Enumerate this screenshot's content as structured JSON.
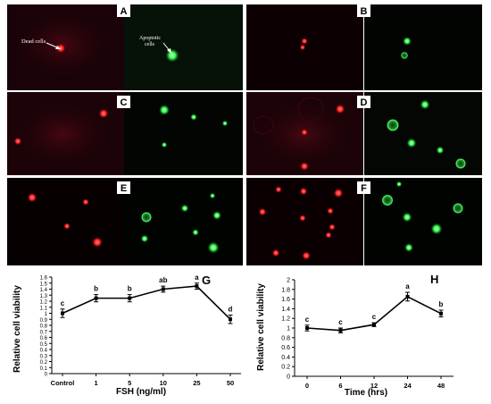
{
  "panels": [
    {
      "letter": "A",
      "annotations": [
        "Dead cells",
        "Apoptotic cells"
      ]
    },
    {
      "letter": "B"
    },
    {
      "letter": "C"
    },
    {
      "letter": "D"
    },
    {
      "letter": "E"
    },
    {
      "letter": "F"
    }
  ],
  "colors": {
    "dead_stain": "#ff2a2a",
    "apoptotic_stain": "#3cff5a",
    "background": "#120006"
  },
  "chart_data": [
    {
      "panel": "G",
      "type": "line",
      "categories": [
        "Control",
        "1",
        "5",
        "10",
        "25",
        "50"
      ],
      "values": [
        1.0,
        1.25,
        1.25,
        1.4,
        1.45,
        0.9
      ],
      "errors": [
        0.07,
        0.06,
        0.06,
        0.05,
        0.05,
        0.07
      ],
      "significance": [
        "c",
        "b",
        "b",
        "ab",
        "a",
        "d"
      ],
      "xlabel": "FSH (ng/ml)",
      "ylabel": "Relative cell viability",
      "ylim": [
        0,
        1.6
      ],
      "yticks": [
        "0",
        "0.1",
        "0.2",
        "0.3",
        "0.4",
        "0.5",
        "0.6",
        "0.7",
        "0.8",
        "0.9",
        "1",
        "1.1",
        "1.2",
        "1.3",
        "1.4",
        "1.5",
        "1.6"
      ],
      "grid": false
    },
    {
      "panel": "H",
      "type": "line",
      "categories": [
        "0",
        "6",
        "12",
        "24",
        "48"
      ],
      "values": [
        1.0,
        0.95,
        1.07,
        1.65,
        1.3
      ],
      "errors": [
        0.06,
        0.05,
        0.04,
        0.09,
        0.07
      ],
      "significance": [
        "c",
        "c",
        "c",
        "a",
        "b"
      ],
      "xlabel": "Time (hrs)",
      "ylabel": "Relative cell viability",
      "ylim": [
        0,
        2
      ],
      "yticks": [
        "0",
        "0.2",
        "0.4",
        "0.6",
        "0.8",
        "1",
        "1.2",
        "1.4",
        "1.6",
        "1.8",
        "2"
      ],
      "grid": false
    }
  ]
}
